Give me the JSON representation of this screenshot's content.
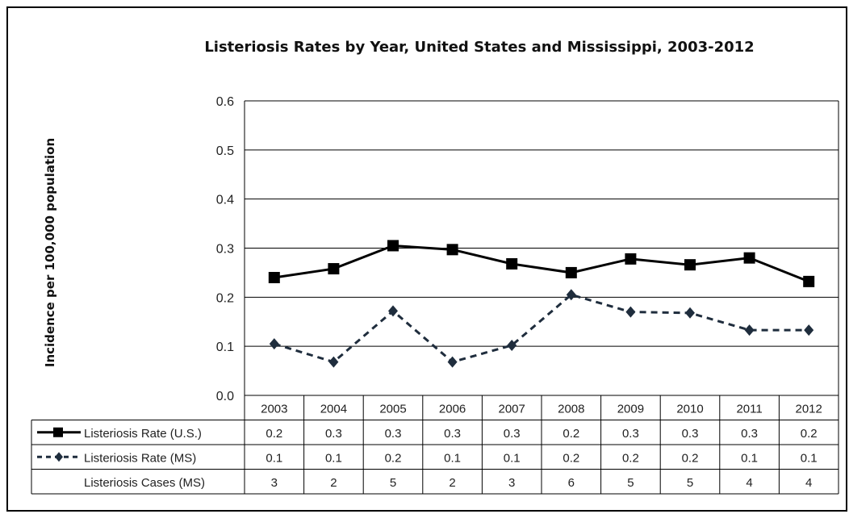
{
  "chart_data": {
    "type": "line",
    "title": "Listeriosis Rates by Year, United States and Mississippi, 2003-2012",
    "ylabel": "Incidence per 100,000 population",
    "xlabel": "",
    "ylim": [
      0,
      0.6
    ],
    "yticks": [
      "0.0",
      "0.1",
      "0.2",
      "0.3",
      "0.4",
      "0.5",
      "0.6"
    ],
    "grid": true,
    "categories": [
      "2003",
      "2004",
      "2005",
      "2006",
      "2007",
      "2008",
      "2009",
      "2010",
      "2011",
      "2012"
    ],
    "series": [
      {
        "name": "Listeriosis Rate (U.S.)",
        "values": [
          0.24,
          0.258,
          0.305,
          0.297,
          0.268,
          0.25,
          0.278,
          0.266,
          0.28,
          0.232
        ],
        "style": "solid",
        "marker": "square",
        "color": "#000000"
      },
      {
        "name": "Listeriosis Rate (MS)",
        "values": [
          0.105,
          0.068,
          0.172,
          0.068,
          0.102,
          0.205,
          0.17,
          0.168,
          0.133,
          0.133
        ],
        "style": "dashed",
        "marker": "diamond",
        "color": "#1f2d3d"
      }
    ],
    "table": {
      "rows": [
        {
          "label": "Listeriosis Rate (U.S.)",
          "legend": "solid-square",
          "values": [
            "0.2",
            "0.3",
            "0.3",
            "0.3",
            "0.3",
            "0.2",
            "0.3",
            "0.3",
            "0.3",
            "0.2"
          ]
        },
        {
          "label": "Listeriosis Rate (MS)",
          "legend": "dashed-diamond",
          "values": [
            "0.1",
            "0.1",
            "0.2",
            "0.1",
            "0.1",
            "0.2",
            "0.2",
            "0.2",
            "0.1",
            "0.1"
          ]
        },
        {
          "label": "Listeriosis Cases (MS)",
          "legend": "none",
          "values": [
            "3",
            "2",
            "5",
            "2",
            "3",
            "6",
            "5",
            "5",
            "4",
            "4"
          ]
        }
      ]
    }
  }
}
